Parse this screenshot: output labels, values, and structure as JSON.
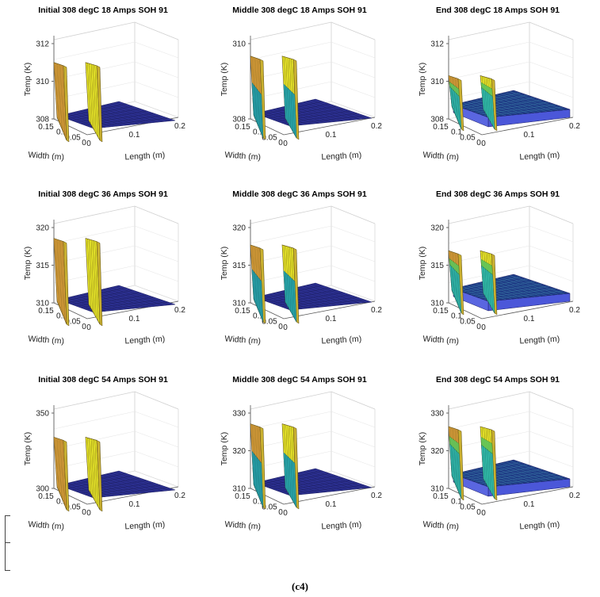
{
  "caption": "(c4)",
  "colors": {
    "orange": "#e3a33f",
    "yellow": "#eded2a",
    "teal": "#21a8b5",
    "cyan": "#2bc0b4",
    "navy": "#2b2f8f",
    "navy_dark": "#1e2066",
    "blue_side": "#4b57d9",
    "green": "#5ec45a"
  },
  "chart_data": [
    {
      "type": "surface",
      "title": "Initial 308 degC 18 Amps SOH 91",
      "xlabel": "Width (m)",
      "ylabel": "Length (m)",
      "zlabel": "Temp (K)",
      "zticks": [
        "308",
        "310",
        "312"
      ],
      "zlim": [
        308,
        312
      ],
      "xticks": [
        "0.15",
        "0.1",
        "0.05",
        "0"
      ],
      "yticks": [
        "0",
        "0.1",
        "0.2"
      ],
      "tab_peak": 311,
      "stage": "initial"
    },
    {
      "type": "surface",
      "title": "Middle 308 degC 18 Amps SOH 91",
      "xlabel": "Width (m)",
      "ylabel": "Length (m)",
      "zlabel": "Temp (K)",
      "zticks": [
        "308",
        "310"
      ],
      "zlim": [
        308,
        311
      ],
      "xticks": [
        "0.15",
        "0.1",
        "0.05",
        "0"
      ],
      "yticks": [
        "0",
        "0.1",
        "0.2"
      ],
      "tab_peak": 310.5,
      "stage": "middle"
    },
    {
      "type": "surface",
      "title": "End 308 degC 18 Amps SOH 91",
      "xlabel": "Width (m)",
      "ylabel": "Length (m)",
      "zlabel": "Temp (K)",
      "zticks": [
        "308",
        "310",
        "312"
      ],
      "zlim": [
        308,
        312
      ],
      "xticks": [
        "0.15",
        "0.1",
        "0.05",
        "0"
      ],
      "yticks": [
        "0",
        "0.1",
        "0.2"
      ],
      "tab_peak": 310.3,
      "stage": "end"
    },
    {
      "type": "surface",
      "title": "Initial 308 degC 36 Amps SOH 91",
      "xlabel": "Width (m)",
      "ylabel": "Length (m)",
      "zlabel": "Temp (K)",
      "zticks": [
        "310",
        "315",
        "320"
      ],
      "zlim": [
        308,
        322
      ],
      "xticks": [
        "0.15",
        "0.1",
        "0.05",
        "0"
      ],
      "yticks": [
        "0",
        "0.1",
        "0.2"
      ],
      "tab_peak": 320,
      "stage": "initial"
    },
    {
      "type": "surface",
      "title": "Middle 308 degC 36 Amps SOH 91",
      "xlabel": "Width (m)",
      "ylabel": "Length (m)",
      "zlabel": "Temp (K)",
      "zticks": [
        "310",
        "315",
        "320"
      ],
      "zlim": [
        308,
        321
      ],
      "xticks": [
        "0.15",
        "0.1",
        "0.05",
        "0"
      ],
      "yticks": [
        "0",
        "0.1",
        "0.2"
      ],
      "tab_peak": 318,
      "stage": "middle"
    },
    {
      "type": "surface",
      "title": "End 308 degC 36 Amps SOH 91",
      "xlabel": "Width (m)",
      "ylabel": "Length (m)",
      "zlabel": "Temp (K)",
      "zticks": [
        "310",
        "315",
        "320"
      ],
      "zlim": [
        308,
        321
      ],
      "xticks": [
        "0.15",
        "0.1",
        "0.05",
        "0"
      ],
      "yticks": [
        "0",
        "0.1",
        "0.2"
      ],
      "tab_peak": 317,
      "stage": "end"
    },
    {
      "type": "surface",
      "title": "Initial 308 degC 54 Amps SOH 91",
      "xlabel": "Width (m)",
      "ylabel": "Length (m)",
      "zlabel": "Temp (K)",
      "zticks": [
        "300",
        "350"
      ],
      "zlim": [
        300,
        350
      ],
      "xticks": [
        "0.15",
        "0.1",
        "0.05",
        "0"
      ],
      "yticks": [
        "0",
        "0.1",
        "0.2"
      ],
      "tab_peak": 334,
      "stage": "initial"
    },
    {
      "type": "surface",
      "title": "Middle 308 degC 54 Amps SOH 91",
      "xlabel": "Width (m)",
      "ylabel": "Length (m)",
      "zlabel": "Temp (K)",
      "zticks": [
        "310",
        "320",
        "330"
      ],
      "zlim": [
        305,
        333
      ],
      "xticks": [
        "0.15",
        "0.1",
        "0.05",
        "0"
      ],
      "yticks": [
        "0",
        "0.1",
        "0.2"
      ],
      "tab_peak": 329,
      "stage": "middle"
    },
    {
      "type": "surface",
      "title": "End 308 degC 54 Amps SOH 91",
      "xlabel": "Width (m)",
      "ylabel": "Length (m)",
      "zlabel": "Temp (K)",
      "zticks": [
        "310",
        "320",
        "330"
      ],
      "zlim": [
        305,
        333
      ],
      "xticks": [
        "0.15",
        "0.1",
        "0.05",
        "0"
      ],
      "yticks": [
        "0",
        "0.1",
        "0.2"
      ],
      "tab_peak": 328,
      "stage": "end"
    }
  ]
}
